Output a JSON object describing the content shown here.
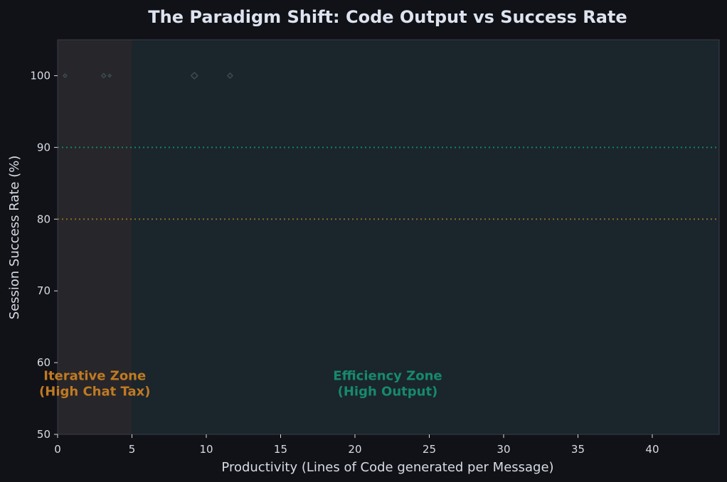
{
  "chart_data": {
    "type": "scatter",
    "title": "The Paradigm Shift: Code Output vs Success Rate",
    "xlabel": "Productivity (Lines of Code generated per Message)",
    "ylabel": "Session Success Rate (%)",
    "xlim": [
      0,
      44.5
    ],
    "ylim": [
      50,
      105
    ],
    "xticks": [
      0,
      5,
      10,
      15,
      20,
      25,
      30,
      35,
      40
    ],
    "yticks": [
      50,
      60,
      70,
      80,
      90,
      100
    ],
    "grid": false,
    "points": [
      {
        "x": 0.5,
        "y": 100,
        "size": 5
      },
      {
        "x": 3.1,
        "y": 100,
        "size": 6
      },
      {
        "x": 3.5,
        "y": 100,
        "size": 4
      },
      {
        "x": 9.2,
        "y": 100,
        "size": 9
      },
      {
        "x": 11.6,
        "y": 100,
        "size": 7
      }
    ],
    "reference_lines": [
      {
        "y": 90,
        "color": "#17806a",
        "style": "dotted"
      },
      {
        "y": 80,
        "color": "#8a6a2a",
        "style": "dotted"
      }
    ],
    "zones": [
      {
        "x_start": 0,
        "x_end": 5,
        "label_line1": "Iterative Zone",
        "label_line2": "(High Chat Tax)",
        "label_x": 2.5,
        "fill": "#27262a",
        "text_color": "#c07a22"
      },
      {
        "x_start": 5,
        "x_end": 44.5,
        "label_line1": "Efficiency Zone",
        "label_line2": "(High Output)",
        "label_x": 22.2,
        "fill": "#1b252c",
        "text_color": "#168a6c"
      }
    ],
    "zone_label_y": 56.5
  },
  "colors": {
    "background": "#111217",
    "text": "#d7dbe4",
    "title": "#dde3ef",
    "axis": "#3a3f4a",
    "marker": "#3c4a52"
  }
}
